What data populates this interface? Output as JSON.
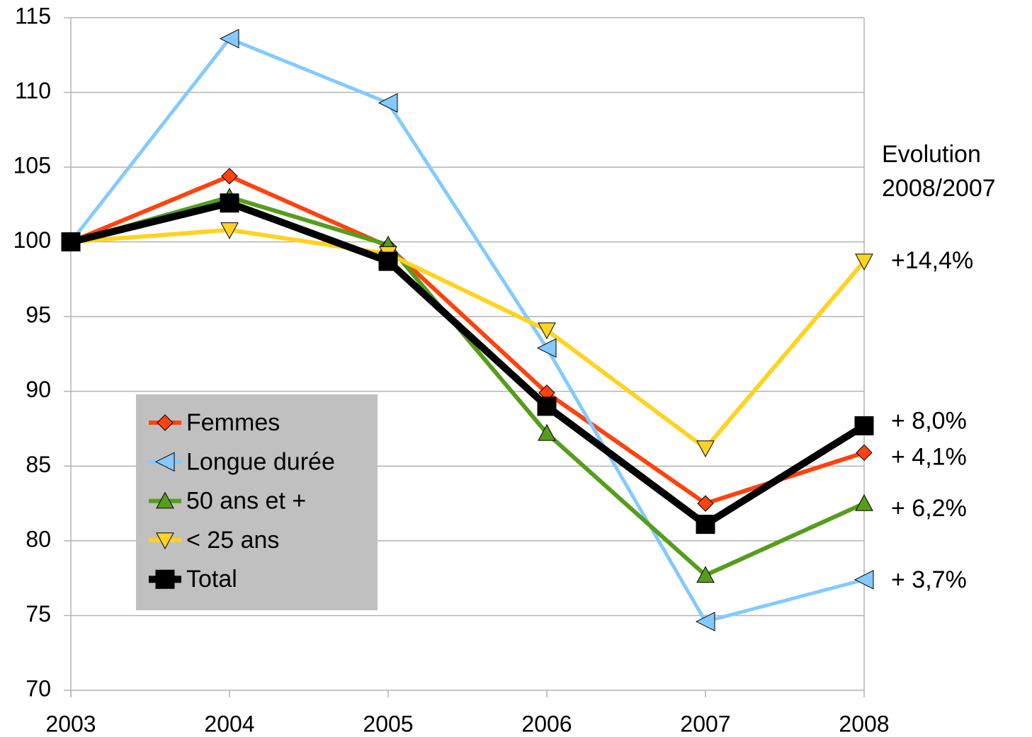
{
  "chart_data": {
    "type": "line",
    "x": [
      2003,
      2004,
      2005,
      2006,
      2007,
      2008
    ],
    "xlim": [
      2003,
      2008
    ],
    "xticks": [
      2003,
      2004,
      2005,
      2006,
      2007,
      2008
    ],
    "ylim": [
      70,
      115
    ],
    "yticks": [
      70,
      75,
      80,
      85,
      90,
      95,
      100,
      105,
      110,
      115
    ],
    "grid": true,
    "legend": "lower left",
    "annotation_heading": [
      "Evolution",
      "2008/2007"
    ],
    "series": [
      {
        "name": "Femmes",
        "color": "#ff420e",
        "marker": "diamond",
        "values": [
          100,
          104.4,
          99.7,
          89.9,
          82.5,
          85.9
        ],
        "evolution_label": "+ 4,1%"
      },
      {
        "name": "Longue durée",
        "color": "#83caff",
        "marker": "triangle-left",
        "values": [
          100,
          113.6,
          109.3,
          92.9,
          74.6,
          77.4
        ],
        "evolution_label": "+ 3,7%"
      },
      {
        "name": "50 ans et +",
        "color": "#579d1c",
        "marker": "triangle-up",
        "values": [
          100,
          103,
          99.8,
          87.2,
          77.7,
          82.5
        ],
        "evolution_label": "+ 6,2%"
      },
      {
        "name": "< 25 ans",
        "color": "#ffd320",
        "marker": "triangle-down",
        "values": [
          100,
          100.8,
          99.2,
          94.1,
          86.2,
          98.7
        ],
        "evolution_label": "+14,4%"
      },
      {
        "name": "Total",
        "color": "#000000",
        "marker": "square",
        "values": [
          100,
          102.6,
          98.7,
          89.0,
          81.1,
          87.7
        ],
        "evolution_label": "+ 8,0%"
      }
    ]
  }
}
